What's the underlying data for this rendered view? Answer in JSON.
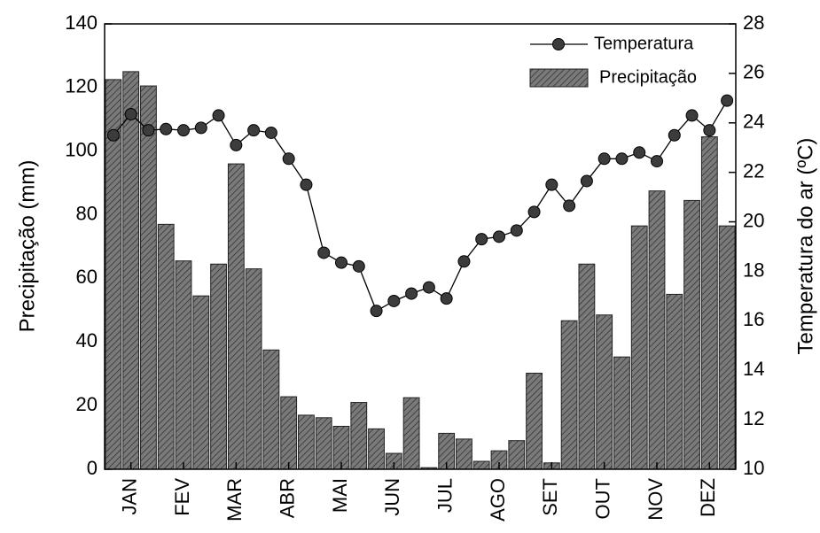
{
  "chart_data": {
    "type": "bar",
    "categories": [
      null,
      "JAN",
      null,
      null,
      "FEV",
      null,
      null,
      "MAR",
      null,
      null,
      "ABR",
      null,
      null,
      "MAI",
      null,
      null,
      "JUN",
      null,
      null,
      "JUL",
      null,
      null,
      "AGO",
      null,
      null,
      "SET",
      null,
      null,
      "OUT",
      null,
      null,
      "NOV",
      null,
      null,
      "DEZ",
      null
    ],
    "series": [
      {
        "name": "Temperatura",
        "type": "line",
        "axis": "y2",
        "color": "#000000",
        "marker_color": "#3c3c3c",
        "values": [
          23.5,
          24.35,
          23.7,
          23.75,
          23.7,
          23.8,
          24.3,
          23.1,
          23.7,
          23.6,
          22.55,
          21.5,
          18.75,
          18.35,
          18.2,
          16.4,
          16.8,
          17.1,
          17.35,
          16.9,
          18.4,
          19.3,
          19.4,
          19.65,
          20.4,
          21.5,
          20.65,
          21.65,
          22.55,
          22.55,
          22.8,
          22.45,
          23.5,
          24.3,
          23.7,
          24.9
        ]
      },
      {
        "name": "Precipitação",
        "type": "bar",
        "axis": "y",
        "color": "#6e6e6e",
        "values": [
          122.5,
          125,
          120.5,
          77,
          65.5,
          54.5,
          64.5,
          96,
          63,
          37.5,
          22.8,
          17,
          16.2,
          13.5,
          21,
          12.7,
          5,
          22.5,
          0.5,
          11.3,
          9.5,
          2.5,
          5.8,
          9,
          30.2,
          2,
          46.7,
          64.5,
          48.5,
          35.3,
          76.5,
          87.5,
          55,
          84.5,
          104.5,
          76.5
        ]
      }
    ],
    "y_label": "Precipitação (mm)",
    "y2_label": "Temperatura do ar (ºC)",
    "ylim": [
      0,
      140
    ],
    "yticks": [
      0,
      20,
      40,
      60,
      80,
      100,
      120,
      140
    ],
    "y2lim": [
      10,
      28
    ],
    "y2ticks": [
      10,
      12,
      14,
      16,
      18,
      20,
      22,
      24,
      26,
      28
    ],
    "legend": "upper right"
  }
}
